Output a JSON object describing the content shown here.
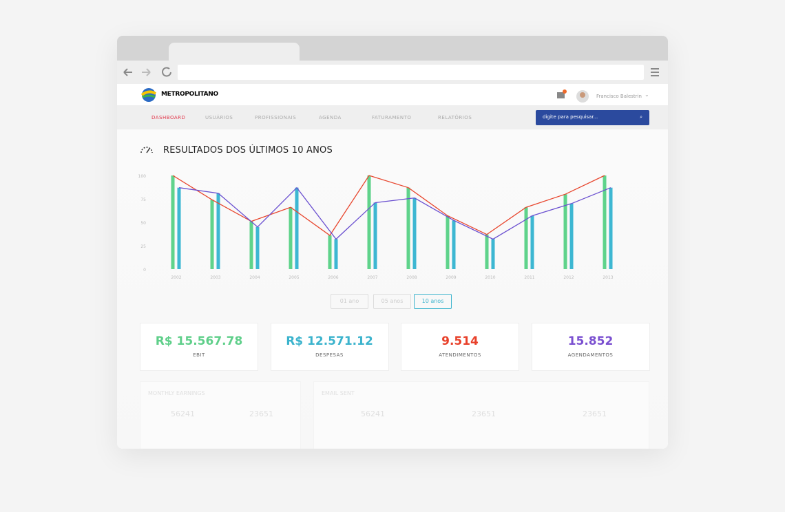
{
  "header": {
    "logo": "METROPOLITANO",
    "user": "Francisco Balestrin"
  },
  "nav": [
    "DASHBOARD",
    "USUÁRIOS",
    "PROFISSIONAIS",
    "AGENDA",
    "FATURAMENTO",
    "RELATÓRIOS"
  ],
  "search": {
    "placeholder": "digite para pesquisar..."
  },
  "chart_data": {
    "type": "bar",
    "title": "RESULTADOS DOS ÚLTIMOS 10 ANOS",
    "categories": [
      "2002",
      "2003",
      "2004",
      "2005",
      "2006",
      "2007",
      "2008",
      "2009",
      "2010",
      "2011",
      "2012",
      "2013"
    ],
    "series": [
      {
        "color": "#5fd38b",
        "line_color": "#e8462e",
        "values": [
          100,
          74,
          51,
          66,
          36,
          100,
          87,
          57,
          37,
          66,
          80,
          100
        ]
      },
      {
        "color": "#3db7d2",
        "line_color": "#6a4fd0",
        "values": [
          87,
          81,
          45,
          87,
          32,
          71,
          76,
          52,
          32,
          57,
          70,
          87
        ]
      }
    ],
    "ylim": [
      0,
      100
    ],
    "yticks": [
      0,
      25,
      50,
      75,
      100
    ],
    "grid": false
  },
  "range_buttons": [
    "01 ano",
    "05 anos",
    "10 anos"
  ],
  "stats": [
    {
      "value": "R$ 15.567.78",
      "label": "EBIT",
      "color": "#5fcf8a"
    },
    {
      "value": "R$ 12.571.12",
      "label": "DESPESAS",
      "color": "#3bb3cd"
    },
    {
      "value": "9.514",
      "label": "ATENDIMENTOS",
      "color": "#e8402a"
    },
    {
      "value": "15.852",
      "label": "AGENDAMENTOS",
      "color": "#7a4fd0"
    }
  ],
  "panels": [
    {
      "title": "MONTHLY EARNINGS",
      "values": [
        "56241",
        "23651"
      ]
    },
    {
      "title": "EMAIL SENT",
      "values": [
        "56241",
        "23651",
        "23651"
      ]
    }
  ]
}
